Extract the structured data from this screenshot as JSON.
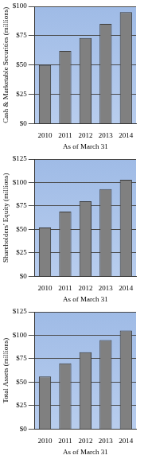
{
  "chart_data": [
    {
      "type": "bar",
      "y_label": "Cash & Marketable Securities (millions)",
      "x_label": "As of March 31",
      "categories": [
        "2010",
        "2011",
        "2012",
        "2013",
        "2014"
      ],
      "values": [
        50,
        62,
        73,
        85,
        95
      ],
      "color": "#808080",
      "ylim": [
        0,
        100
      ],
      "yticks": [
        {
          "value": 0,
          "label": "$0"
        },
        {
          "value": 25,
          "label": "$25"
        },
        {
          "value": 50,
          "label": "$50"
        },
        {
          "value": 75,
          "label": "$75"
        },
        {
          "value": 100,
          "label": "$100"
        }
      ],
      "grid": true
    },
    {
      "type": "bar",
      "y_label": "Shareholders' Equity (millions)",
      "x_label": "As of March 31",
      "categories": [
        "2010",
        "2011",
        "2012",
        "2013",
        "2014"
      ],
      "values": [
        52,
        69,
        80,
        93,
        103
      ],
      "color": "#808080",
      "ylim": [
        0,
        125
      ],
      "yticks": [
        {
          "value": 0,
          "label": "$0"
        },
        {
          "value": 25,
          "label": "$25"
        },
        {
          "value": 50,
          "label": "$50"
        },
        {
          "value": 75,
          "label": "$75"
        },
        {
          "value": 100,
          "label": "$100"
        },
        {
          "value": 125,
          "label": "$125"
        }
      ],
      "grid": true
    },
    {
      "type": "bar",
      "y_label": "Total Assets (millions)",
      "x_label": "As of March 31",
      "categories": [
        "2010",
        "2011",
        "2012",
        "2013",
        "2014"
      ],
      "values": [
        56,
        70,
        82,
        95,
        105
      ],
      "color": "#808080",
      "ylim": [
        0,
        125
      ],
      "yticks": [
        {
          "value": 0,
          "label": "$0"
        },
        {
          "value": 25,
          "label": "$25"
        },
        {
          "value": 50,
          "label": "$50"
        },
        {
          "value": 75,
          "label": "$75"
        },
        {
          "value": 100,
          "label": "$100"
        },
        {
          "value": 125,
          "label": "$125"
        }
      ],
      "grid": true
    }
  ]
}
